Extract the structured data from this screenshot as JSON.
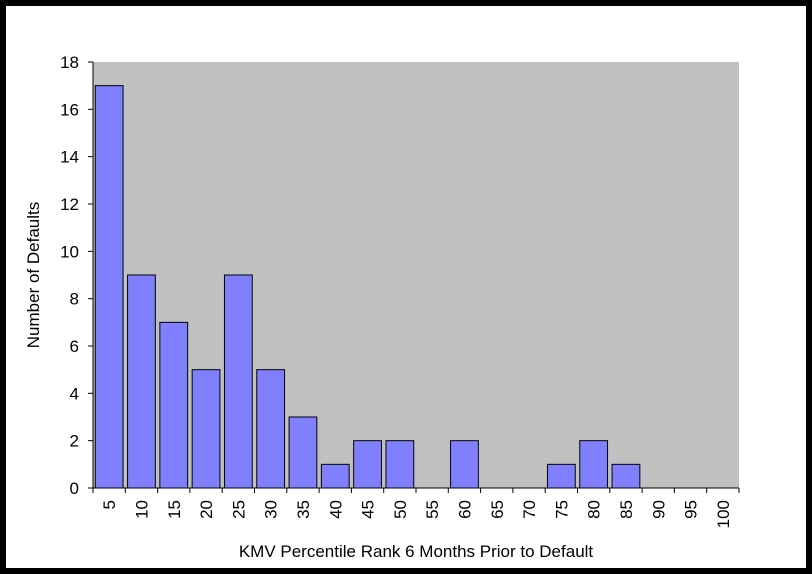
{
  "chart_data": {
    "type": "bar",
    "x_label": "KMV Percentile Rank 6 Months Prior to Default",
    "y_label": "Number of Defaults",
    "categories": [
      "5",
      "10",
      "15",
      "20",
      "25",
      "30",
      "35",
      "40",
      "45",
      "50",
      "55",
      "60",
      "65",
      "70",
      "75",
      "80",
      "85",
      "90",
      "95",
      "100"
    ],
    "values": [
      17,
      9,
      7,
      5,
      9,
      5,
      3,
      1,
      2,
      2,
      0,
      2,
      0,
      0,
      1,
      2,
      1,
      0,
      0,
      0
    ],
    "color": "#8080ff",
    "ylim": [
      0,
      18
    ],
    "yticks": [
      0,
      2,
      4,
      6,
      8,
      10,
      12,
      14,
      16,
      18
    ]
  }
}
